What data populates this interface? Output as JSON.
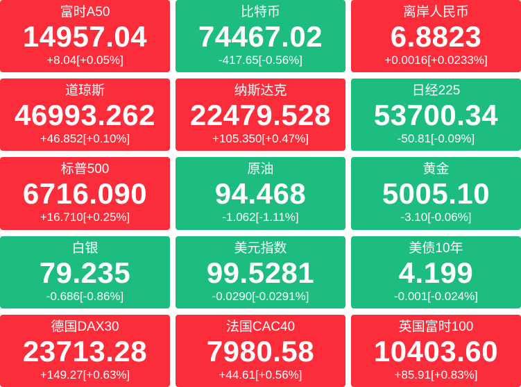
{
  "colors": {
    "up_background": "#fb2d3a",
    "down_background": "#1cbd7e",
    "text": "#ffffff",
    "page_background": "#ffffff"
  },
  "tiles": [
    {
      "name": "富时A50",
      "value": "14957.04",
      "change": "+8.04[+0.05%]",
      "trend": "up"
    },
    {
      "name": "比特币",
      "value": "74467.02",
      "change": "-417.65[-0.56%]",
      "trend": "down"
    },
    {
      "name": "离岸人民币",
      "value": "6.8823",
      "change": "+0.0016[+0.0233%]",
      "trend": "up"
    },
    {
      "name": "道琼斯",
      "value": "46993.262",
      "change": "+46.852[+0.10%]",
      "trend": "up"
    },
    {
      "name": "纳斯达克",
      "value": "22479.528",
      "change": "+105.350[+0.47%]",
      "trend": "up"
    },
    {
      "name": "日经225",
      "value": "53700.34",
      "change": "-50.81[-0.09%]",
      "trend": "down"
    },
    {
      "name": "标普500",
      "value": "6716.090",
      "change": "+16.710[+0.25%]",
      "trend": "up"
    },
    {
      "name": "原油",
      "value": "94.468",
      "change": "-1.062[-1.11%]",
      "trend": "down"
    },
    {
      "name": "黄金",
      "value": "5005.10",
      "change": "-3.10[-0.06%]",
      "trend": "down"
    },
    {
      "name": "白银",
      "value": "79.235",
      "change": "-0.686[-0.86%]",
      "trend": "down"
    },
    {
      "name": "美元指数",
      "value": "99.5281",
      "change": "-0.0290[-0.0291%]",
      "trend": "down"
    },
    {
      "name": "美债10年",
      "value": "4.199",
      "change": "-0.001[-0.024%]",
      "trend": "down"
    },
    {
      "name": "德国DAX30",
      "value": "23713.28",
      "change": "+149.27[+0.63%]",
      "trend": "up"
    },
    {
      "name": "法国CAC40",
      "value": "7980.58",
      "change": "+44.61[+0.56%]",
      "trend": "up"
    },
    {
      "name": "英国富时100",
      "value": "10403.60",
      "change": "+85.91[+0.83%]",
      "trend": "up"
    }
  ]
}
